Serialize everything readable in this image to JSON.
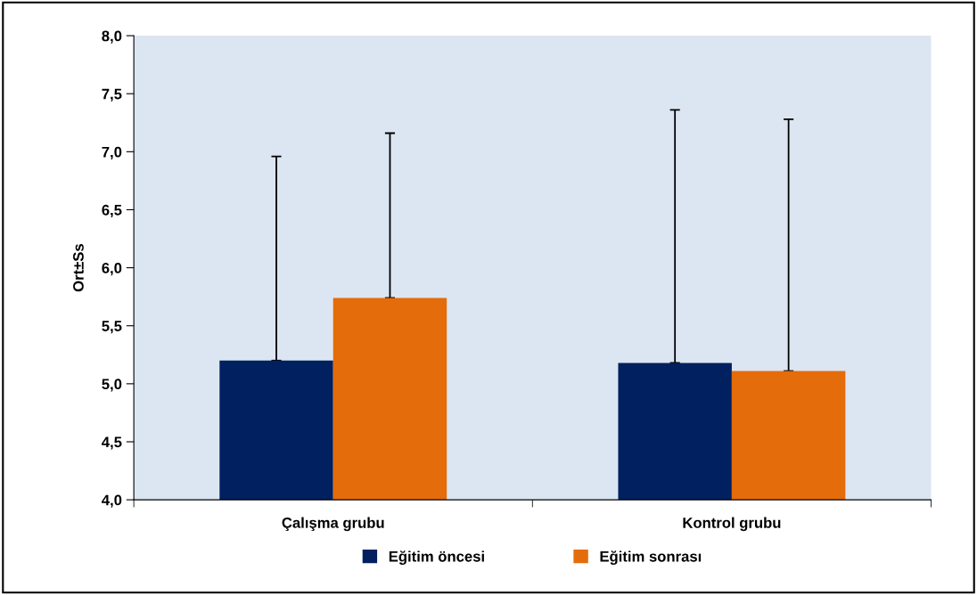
{
  "chart_data": {
    "type": "bar",
    "ylabel": "Ort±Ss",
    "categories": [
      "Çalışma grubu",
      "Kontrol grubu"
    ],
    "series": [
      {
        "name": "Eğitim öncesi",
        "color": "#002060",
        "values": [
          5.2,
          5.18
        ],
        "errors": [
          [
            5.2,
            6.96
          ],
          [
            5.18,
            7.36
          ]
        ]
      },
      {
        "name": "Eğitim sonrası",
        "color": "#e46c0a",
        "values": [
          5.74,
          5.11
        ],
        "errors": [
          [
            5.74,
            7.16
          ],
          [
            5.11,
            7.28
          ]
        ]
      }
    ],
    "ylim": [
      4.0,
      8.0
    ],
    "yticks": [
      {
        "value": 4.0,
        "label": "4,0"
      },
      {
        "value": 4.5,
        "label": "4,5"
      },
      {
        "value": 5.0,
        "label": "5,0"
      },
      {
        "value": 5.5,
        "label": "5,5"
      },
      {
        "value": 6.0,
        "label": "6,0"
      },
      {
        "value": 6.5,
        "label": "6,5"
      },
      {
        "value": 7.0,
        "label": "7,0"
      },
      {
        "value": 7.5,
        "label": "7,5"
      },
      {
        "value": 8.0,
        "label": "8,0"
      }
    ],
    "grid": false,
    "legend": "bottom"
  }
}
